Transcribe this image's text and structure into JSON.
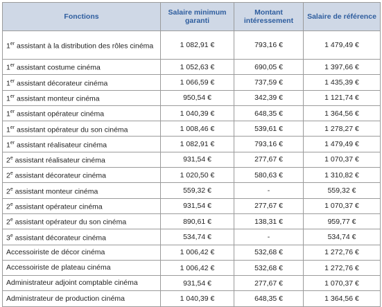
{
  "table": {
    "header": [
      "Fonctions",
      "Salaire minimum garanti",
      "Montant intéressement",
      "Salaire de référence"
    ],
    "rows": [
      [
        {
          "n": "1",
          "sup": "er",
          "text": "assistant à la distribution des rôles cinéma"
        },
        "1 082,91 €",
        "793,16 €",
        "1 479,49 €"
      ],
      [
        {
          "n": "1",
          "sup": "er",
          "text": "assistant costume cinéma"
        },
        "1 052,63 €",
        "690,05 €",
        "1 397,66 €"
      ],
      [
        {
          "n": "1",
          "sup": "er",
          "text": "assistant décorateur cinéma"
        },
        "1 066,59 €",
        "737,59 €",
        "1 435,39 €"
      ],
      [
        {
          "n": "1",
          "sup": "er",
          "text": "assistant monteur cinéma"
        },
        "950,54 €",
        "342,39 €",
        "1 121,74 €"
      ],
      [
        {
          "n": "1",
          "sup": "er",
          "text": "assistant opérateur cinéma"
        },
        "1 040,39 €",
        "648,35 €",
        "1 364,56 €"
      ],
      [
        {
          "n": "1",
          "sup": "er",
          "text": "assistant opérateur du son cinéma"
        },
        "1 008,46 €",
        "539,61 €",
        "1 278,27 €"
      ],
      [
        {
          "n": "1",
          "sup": "er",
          "text": "assistant réalisateur cinéma"
        },
        "1 082,91 €",
        "793,16 €",
        "1 479,49 €"
      ],
      [
        {
          "n": "2",
          "sup": "e",
          "text": "assistant réalisateur cinéma"
        },
        "931,54 €",
        "277,67 €",
        "1 070,37 €"
      ],
      [
        {
          "n": "2",
          "sup": "e",
          "text": "assistant décorateur cinéma"
        },
        "1 020,50 €",
        "580,63 €",
        "1 310,82 €"
      ],
      [
        {
          "n": "2",
          "sup": "e",
          "text": "assistant monteur cinéma"
        },
        "559,32 €",
        "-",
        "559,32 €"
      ],
      [
        {
          "n": "2",
          "sup": "e",
          "text": "assistant opérateur cinéma"
        },
        "931,54 €",
        "277,67 €",
        "1 070,37 €"
      ],
      [
        {
          "n": "2",
          "sup": "e",
          "text": "assistant opérateur du son cinéma"
        },
        "890,61 €",
        "138,31 €",
        "959,77 €"
      ],
      [
        {
          "n": "3",
          "sup": "e",
          "text": "assistant décorateur cinéma"
        },
        "534,74 €",
        "-",
        "534,74 €"
      ],
      [
        "Accessoiriste de décor cinéma",
        "1 006,42 €",
        "532,68 €",
        "1 272,76 €"
      ],
      [
        "Accessoiriste de plateau cinéma",
        "1 006,42 €",
        "532,68 €",
        "1 272,76 €"
      ],
      [
        "Administrateur adjoint comptable cinéma",
        "931,54 €",
        "277,67 €",
        "1 070,37 €"
      ],
      [
        "Administrateur de production cinéma",
        "1 040,39 €",
        "648,35 €",
        "1 364,56 €"
      ]
    ]
  }
}
